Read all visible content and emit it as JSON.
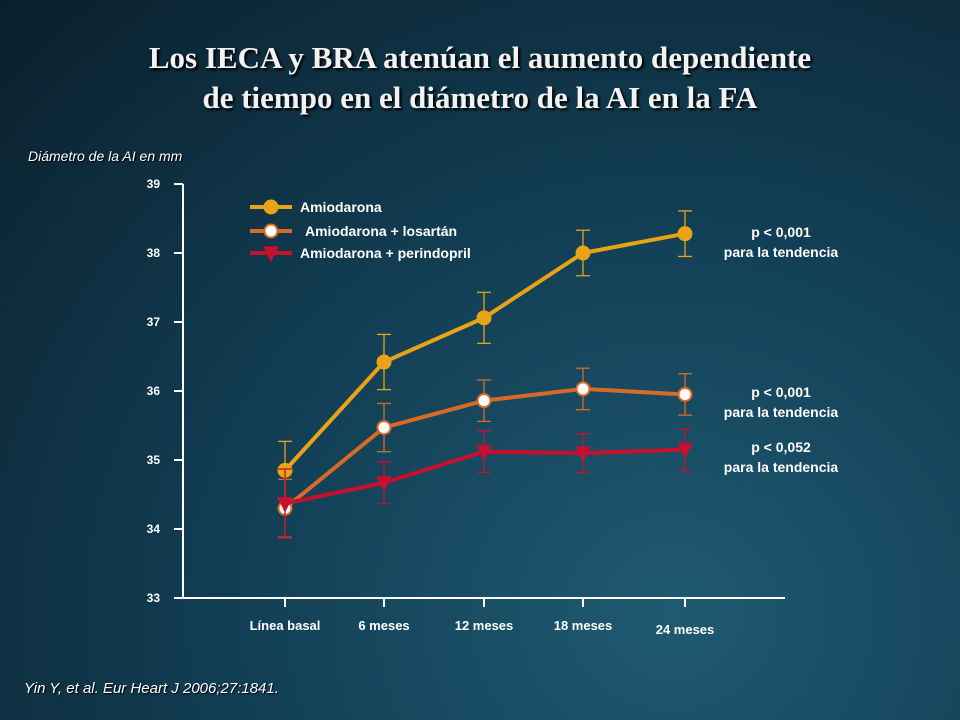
{
  "slide": {
    "title_line1": "Los IECA y BRA atenúan el aumento dependiente",
    "title_line2": "de tiempo en el diámetro de la AI en la FA",
    "citation": "Yin Y,  et al. Eur Heart J 2006;27:1841."
  },
  "chart_data": {
    "type": "line",
    "ylabel": "Diámetro de la AI en mm",
    "xlabel": "",
    "categories": [
      "Línea basal",
      "6 meses",
      "12 meses",
      "18 meses",
      "24 meses"
    ],
    "ylim": [
      33,
      39
    ],
    "yticks": [
      "33",
      "34",
      "35",
      "36",
      "37",
      "38",
      "39"
    ],
    "grid": false,
    "legend_position": "top-left",
    "series": [
      {
        "name": "Amiodarona",
        "color": "#e8a317",
        "marker": "circle-filled",
        "values": [
          34.85,
          36.42,
          37.06,
          38.0,
          38.28
        ],
        "error": [
          0.42,
          0.4,
          0.37,
          0.33,
          0.33
        ],
        "annotation": [
          "p < 0,001",
          "para la tendencia"
        ]
      },
      {
        "name": "Amiodarona + losartán",
        "color": "#d86a28",
        "marker": "circle-open",
        "values": [
          34.3,
          35.47,
          35.86,
          36.03,
          35.95
        ],
        "error": [
          0.42,
          0.35,
          0.3,
          0.3,
          0.3
        ],
        "annotation": [
          "p < 0,001",
          "para la tendencia"
        ]
      },
      {
        "name": "Amiodarona + perindopril",
        "color": "#c8102e",
        "marker": "triangle-down",
        "values": [
          34.37,
          34.67,
          35.12,
          35.1,
          35.15
        ],
        "error": [
          0.5,
          0.3,
          0.3,
          0.28,
          0.3
        ],
        "annotation": [
          "p < 0,052",
          "para la tendencia"
        ]
      }
    ]
  }
}
